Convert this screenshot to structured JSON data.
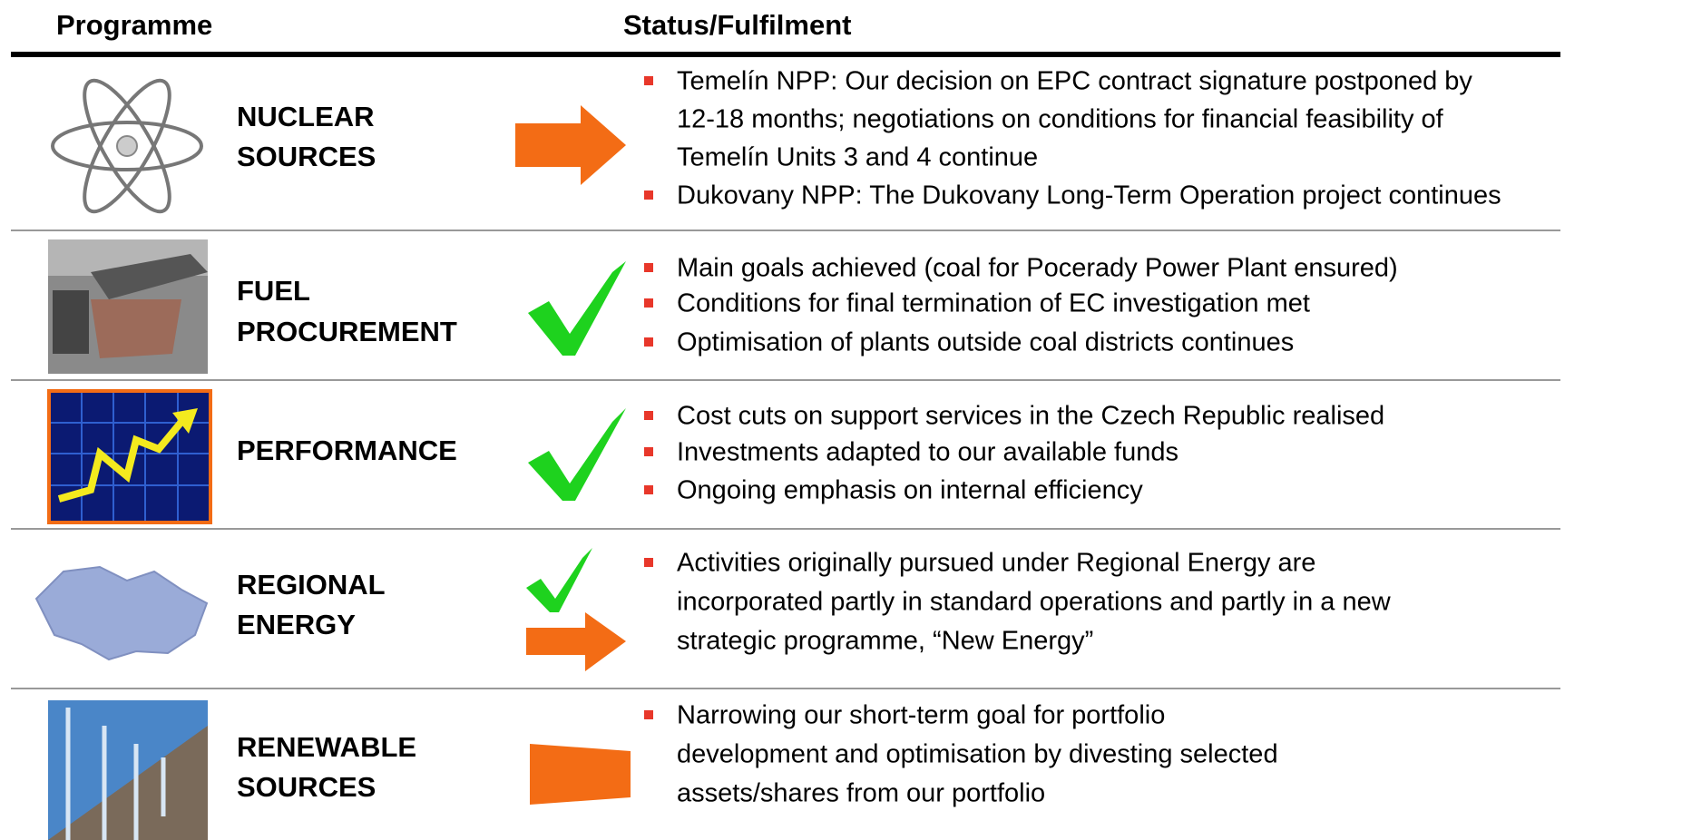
{
  "header": {
    "columns": [
      "Programme",
      "Status/Fulfilment"
    ]
  },
  "rows": [
    {
      "label": [
        "NUCLEAR",
        "SOURCES"
      ],
      "bullets": [
        [
          "Temelín NPP: Our decision on EPC contract signature postponed by",
          "12-18 months; negotiations on conditions for financial feasibility of",
          "Temelín Units 3 and 4 continue"
        ],
        [
          "Dukovany NPP: The Dukovany Long-Term Operation project continues"
        ]
      ]
    },
    {
      "label": [
        "FUEL",
        "PROCUREMENT"
      ],
      "bullets": [
        [
          "Main goals achieved (coal for Pocerady Power Plant ensured)"
        ],
        [
          "Conditions for final termination of EC investigation met"
        ],
        [
          "Optimisation of plants outside coal districts continues"
        ]
      ]
    },
    {
      "label": [
        "PERFORMANCE"
      ],
      "bullets": [
        [
          "Cost cuts on support services in the Czech Republic realised"
        ],
        [
          "Investments adapted to our available funds"
        ],
        [
          "Ongoing emphasis on internal efficiency"
        ]
      ]
    },
    {
      "label": [
        "REGIONAL",
        "ENERGY"
      ],
      "bullets": [
        [
          "Activities originally pursued under Regional Energy are",
          "incorporated partly in standard operations and partly in a new",
          "strategic programme, “New Energy”"
        ]
      ]
    },
    {
      "label": [
        "RENEWABLE",
        "SOURCES"
      ],
      "bullets": [
        [
          "Narrowing our short-term goal for portfolio",
          "development and optimisation by divesting selected",
          "assets/shares from our portfolio"
        ]
      ]
    }
  ]
}
